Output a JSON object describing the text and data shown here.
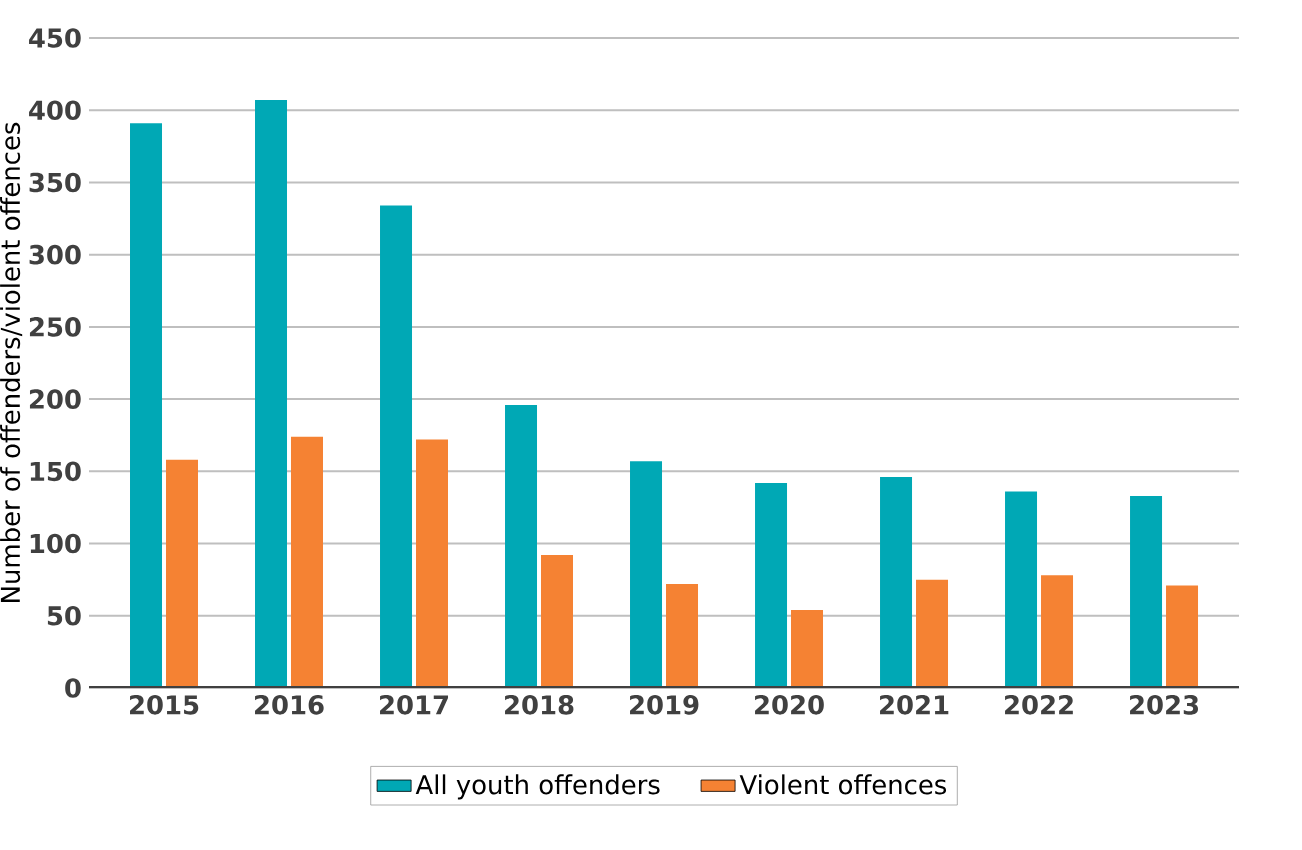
{
  "chart_data": {
    "type": "bar",
    "ylabel": "Number of offenders/violent offences",
    "categories": [
      "2015",
      "2016",
      "2017",
      "2018",
      "2019",
      "2020",
      "2021",
      "2022",
      "2023"
    ],
    "series": [
      {
        "name": "All youth offenders",
        "color": "#00a8b5",
        "values": [
          391,
          407,
          334,
          196,
          157,
          142,
          146,
          136,
          133
        ]
      },
      {
        "name": "Violent offences",
        "color": "#f58233",
        "values": [
          158,
          174,
          172,
          92,
          72,
          54,
          75,
          78,
          71
        ]
      }
    ],
    "ylim": [
      0,
      450
    ],
    "yticks": [
      0,
      50,
      100,
      150,
      200,
      250,
      300,
      350,
      400,
      450
    ],
    "grid": "y",
    "legend": "bottom"
  }
}
